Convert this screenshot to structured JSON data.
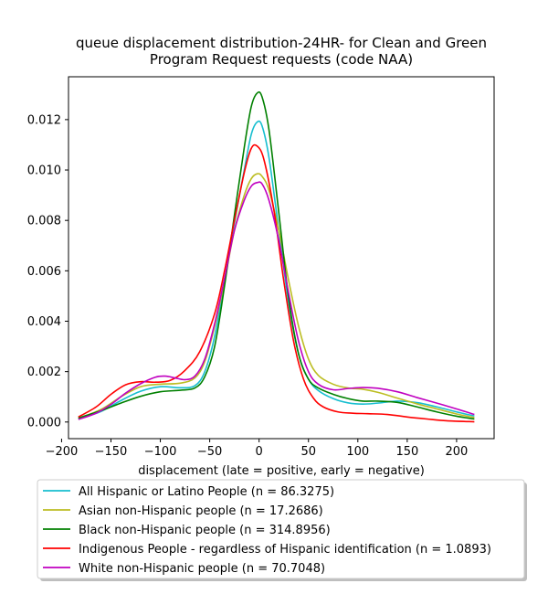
{
  "chart_data": {
    "type": "line",
    "title_lines": [
      "queue displacement distribution-24HR-  for Clean and Green",
      "Program Request  requests (code NAA)"
    ],
    "xlabel": "displacement (late = positive, early = negative)",
    "ylabel": "",
    "xlim": [
      -193,
      238
    ],
    "ylim": [
      -0.00066,
      0.0137
    ],
    "xticks": [
      -200,
      -150,
      -100,
      -50,
      0,
      50,
      100,
      150,
      200
    ],
    "xtick_labels": [
      "−200",
      "−150",
      "−100",
      "−50",
      "0",
      "50",
      "100",
      "150",
      "200"
    ],
    "yticks": [
      0.0,
      0.002,
      0.004,
      0.006,
      0.008,
      0.01,
      0.012
    ],
    "ytick_labels": [
      "0.000",
      "0.002",
      "0.004",
      "0.006",
      "0.008",
      "0.010",
      "0.012"
    ],
    "grid": false,
    "legend_position": "below plot",
    "series": [
      {
        "name": "All Hispanic or Latino People (n = 86.3275)",
        "color": "#17becf",
        "points": [
          [
            -183,
            0.00013
          ],
          [
            -160,
            0.00042
          ],
          [
            -140,
            0.00085
          ],
          [
            -120,
            0.00122
          ],
          [
            -100,
            0.0014
          ],
          [
            -80,
            0.00136
          ],
          [
            -65,
            0.00144
          ],
          [
            -55,
            0.002
          ],
          [
            -45,
            0.0034
          ],
          [
            -35,
            0.0056
          ],
          [
            -25,
            0.0079
          ],
          [
            -15,
            0.01
          ],
          [
            -8,
            0.0114
          ],
          [
            -2,
            0.0119
          ],
          [
            3,
            0.01175
          ],
          [
            10,
            0.0105
          ],
          [
            20,
            0.0076
          ],
          [
            30,
            0.0047
          ],
          [
            40,
            0.0027
          ],
          [
            50,
            0.0017
          ],
          [
            60,
            0.00125
          ],
          [
            75,
            0.00093
          ],
          [
            90,
            0.00076
          ],
          [
            105,
            0.00071
          ],
          [
            120,
            0.00075
          ],
          [
            140,
            0.00083
          ],
          [
            160,
            0.00077
          ],
          [
            180,
            0.0006
          ],
          [
            200,
            0.0004
          ],
          [
            218,
            0.00024
          ]
        ]
      },
      {
        "name": "Asian non-Hispanic people (n = 17.2686)",
        "color": "#bcbd22",
        "points": [
          [
            -183,
            0.00014
          ],
          [
            -160,
            0.0005
          ],
          [
            -140,
            0.001
          ],
          [
            -120,
            0.0014
          ],
          [
            -100,
            0.0015
          ],
          [
            -80,
            0.00154
          ],
          [
            -65,
            0.00175
          ],
          [
            -55,
            0.0024
          ],
          [
            -45,
            0.0038
          ],
          [
            -35,
            0.0056
          ],
          [
            -25,
            0.0076
          ],
          [
            -15,
            0.009
          ],
          [
            -8,
            0.00965
          ],
          [
            -2,
            0.00985
          ],
          [
            3,
            0.00975
          ],
          [
            10,
            0.0092
          ],
          [
            20,
            0.0076
          ],
          [
            30,
            0.0056
          ],
          [
            40,
            0.0038
          ],
          [
            50,
            0.0025
          ],
          [
            60,
            0.00185
          ],
          [
            75,
            0.0015
          ],
          [
            90,
            0.00135
          ],
          [
            105,
            0.0013
          ],
          [
            120,
            0.00118
          ],
          [
            140,
            0.00095
          ],
          [
            160,
            0.00072
          ],
          [
            180,
            0.00052
          ],
          [
            200,
            0.00032
          ],
          [
            218,
            0.00018
          ]
        ]
      },
      {
        "name": "Black non-Hispanic people (n = 314.8956)",
        "color": "#008000",
        "points": [
          [
            -183,
            0.00016
          ],
          [
            -160,
            0.00045
          ],
          [
            -140,
            0.00075
          ],
          [
            -120,
            0.00102
          ],
          [
            -100,
            0.0012
          ],
          [
            -80,
            0.00126
          ],
          [
            -65,
            0.00135
          ],
          [
            -55,
            0.0018
          ],
          [
            -45,
            0.003
          ],
          [
            -35,
            0.0054
          ],
          [
            -25,
            0.0082
          ],
          [
            -15,
            0.0109
          ],
          [
            -8,
            0.0125
          ],
          [
            -2,
            0.01305
          ],
          [
            3,
            0.0129
          ],
          [
            10,
            0.0116
          ],
          [
            20,
            0.0083
          ],
          [
            30,
            0.0049
          ],
          [
            40,
            0.0027
          ],
          [
            50,
            0.0017
          ],
          [
            60,
            0.00135
          ],
          [
            75,
            0.0011
          ],
          [
            90,
            0.00093
          ],
          [
            105,
            0.00083
          ],
          [
            120,
            0.00083
          ],
          [
            140,
            0.00078
          ],
          [
            160,
            0.0006
          ],
          [
            180,
            0.0004
          ],
          [
            200,
            0.00023
          ],
          [
            218,
            0.00012
          ]
        ]
      },
      {
        "name": "Indigenous People - regardless of Hispanic identification (n = 1.0893)",
        "color": "#ff0000",
        "points": [
          [
            -183,
            0.0002
          ],
          [
            -165,
            0.0006
          ],
          [
            -150,
            0.0011
          ],
          [
            -135,
            0.00148
          ],
          [
            -120,
            0.0016
          ],
          [
            -105,
            0.00158
          ],
          [
            -90,
            0.00165
          ],
          [
            -75,
            0.00205
          ],
          [
            -60,
            0.0028
          ],
          [
            -45,
            0.0043
          ],
          [
            -35,
            0.006
          ],
          [
            -25,
            0.008
          ],
          [
            -15,
            0.0099
          ],
          [
            -8,
            0.01085
          ],
          [
            -2,
            0.01095
          ],
          [
            5,
            0.0104
          ],
          [
            15,
            0.0084
          ],
          [
            25,
            0.0056
          ],
          [
            35,
            0.0032
          ],
          [
            45,
            0.0017
          ],
          [
            55,
            0.00095
          ],
          [
            65,
            0.0006
          ],
          [
            80,
            0.0004
          ],
          [
            95,
            0.00035
          ],
          [
            110,
            0.00033
          ],
          [
            130,
            0.0003
          ],
          [
            150,
            0.0002
          ],
          [
            170,
            0.00012
          ],
          [
            190,
            5e-05
          ],
          [
            218,
            1e-05
          ]
        ]
      },
      {
        "name": "White non-Hispanic people (n = 70.7048)",
        "color": "#c000c0",
        "points": [
          [
            -183,
            0.0001
          ],
          [
            -165,
            0.00035
          ],
          [
            -150,
            0.0007
          ],
          [
            -135,
            0.00115
          ],
          [
            -120,
            0.00152
          ],
          [
            -105,
            0.00178
          ],
          [
            -95,
            0.00182
          ],
          [
            -85,
            0.00175
          ],
          [
            -75,
            0.00168
          ],
          [
            -65,
            0.00182
          ],
          [
            -55,
            0.0025
          ],
          [
            -45,
            0.0039
          ],
          [
            -35,
            0.0057
          ],
          [
            -25,
            0.0076
          ],
          [
            -15,
            0.0088
          ],
          [
            -8,
            0.00935
          ],
          [
            -2,
            0.0095
          ],
          [
            3,
            0.00945
          ],
          [
            10,
            0.0088
          ],
          [
            20,
            0.0072
          ],
          [
            30,
            0.0051
          ],
          [
            40,
            0.0032
          ],
          [
            50,
            0.002
          ],
          [
            60,
            0.0015
          ],
          [
            75,
            0.00128
          ],
          [
            90,
            0.00133
          ],
          [
            105,
            0.00137
          ],
          [
            120,
            0.00134
          ],
          [
            140,
            0.0012
          ],
          [
            160,
            0.00097
          ],
          [
            180,
            0.00075
          ],
          [
            200,
            0.00052
          ],
          [
            218,
            0.0003
          ]
        ]
      }
    ]
  }
}
